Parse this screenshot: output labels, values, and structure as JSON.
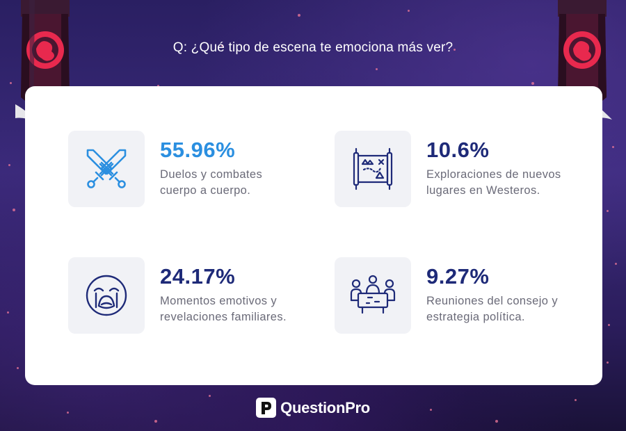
{
  "question": "Q: ¿Qué tipo de escena te emociona más ver?",
  "colors": {
    "accent_blue": "#2b8fe0",
    "accent_navy": "#1e2a78",
    "text_gray": "#6a6a78",
    "banner_red": "#e8294e"
  },
  "stats": [
    {
      "percent": "55.96%",
      "line1": "Duelos y combates",
      "line2": "cuerpo a cuerpo.",
      "icon": "crossed-swords-icon",
      "color": "#2b8fe0"
    },
    {
      "percent": "10.6%",
      "line1": "Exploraciones de nuevos",
      "line2": "lugares en Westeros.",
      "icon": "map-scroll-icon",
      "color": "#1e2a78"
    },
    {
      "percent": "24.17%",
      "line1": "Momentos emotivos y",
      "line2": "revelaciones familiares.",
      "icon": "crying-face-icon",
      "color": "#1e2a78"
    },
    {
      "percent": "9.27%",
      "line1": "Reuniones del consejo y",
      "line2": "estrategia política.",
      "icon": "council-meeting-icon",
      "color": "#1e2a78"
    }
  ],
  "brand": {
    "name": "QuestionPro"
  }
}
